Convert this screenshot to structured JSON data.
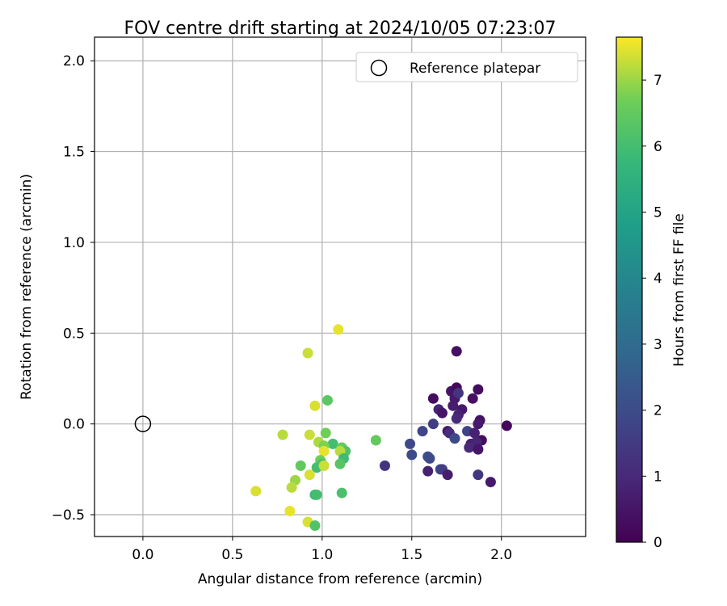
{
  "chart_data": {
    "type": "scatter",
    "title": "FOV centre drift starting at 2024/10/05 07:23:07",
    "xlabel": "Angular distance from reference (arcmin)",
    "ylabel": "Rotation from reference (arcmin)",
    "xlim": [
      -0.27,
      2.47
    ],
    "ylim": [
      -0.62,
      2.13
    ],
    "xticks": [
      0.0,
      0.5,
      1.0,
      1.5,
      2.0
    ],
    "xtick_labels": [
      "0.0",
      "0.5",
      "1.0",
      "1.5",
      "2.0"
    ],
    "yticks": [
      -0.5,
      0.0,
      0.5,
      1.0,
      1.5,
      2.0
    ],
    "ytick_labels": [
      "−0.5",
      "0.0",
      "0.5",
      "1.0",
      "1.5",
      "2.0"
    ],
    "grid": true,
    "legend": {
      "position": "top-right",
      "entries": [
        {
          "label": "Reference platepar",
          "marker": "open-circle",
          "color": "#000000"
        }
      ]
    },
    "reference_point": {
      "x": 0.0,
      "y": 0.0
    },
    "colorbar": {
      "label": "Hours from first FF file",
      "range": [
        0,
        7.65
      ],
      "ticks": [
        0,
        1,
        2,
        3,
        4,
        5,
        6,
        7
      ],
      "tick_labels": [
        "0",
        "1",
        "2",
        "3",
        "4",
        "5",
        "6",
        "7"
      ],
      "colormap": "viridis"
    },
    "points": [
      {
        "x": 1.75,
        "y": 0.4,
        "c": 0.4
      },
      {
        "x": 1.62,
        "y": 0.14,
        "c": 0.3
      },
      {
        "x": 1.72,
        "y": 0.18,
        "c": 0.5
      },
      {
        "x": 1.75,
        "y": 0.2,
        "c": 0.2
      },
      {
        "x": 1.87,
        "y": 0.19,
        "c": 0.3
      },
      {
        "x": 1.74,
        "y": 0.14,
        "c": 0.6
      },
      {
        "x": 1.84,
        "y": 0.14,
        "c": 0.4
      },
      {
        "x": 1.76,
        "y": 0.17,
        "c": 1.3
      },
      {
        "x": 1.65,
        "y": 0.08,
        "c": 0.9
      },
      {
        "x": 1.67,
        "y": 0.06,
        "c": 0.5
      },
      {
        "x": 1.73,
        "y": 0.1,
        "c": 0.7
      },
      {
        "x": 1.78,
        "y": 0.08,
        "c": 0.6
      },
      {
        "x": 1.76,
        "y": 0.05,
        "c": 0.8
      },
      {
        "x": 1.75,
        "y": 0.03,
        "c": 1.0
      },
      {
        "x": 1.62,
        "y": 0.0,
        "c": 1.6
      },
      {
        "x": 1.56,
        "y": -0.04,
        "c": 1.8
      },
      {
        "x": 1.7,
        "y": -0.04,
        "c": 0.5
      },
      {
        "x": 1.71,
        "y": -0.05,
        "c": 1.1
      },
      {
        "x": 1.74,
        "y": -0.08,
        "c": 1.9
      },
      {
        "x": 1.81,
        "y": -0.04,
        "c": 1.7
      },
      {
        "x": 1.88,
        "y": 0.02,
        "c": 0.4
      },
      {
        "x": 1.87,
        "y": 0.0,
        "c": 0.6
      },
      {
        "x": 2.03,
        "y": -0.01,
        "c": 0.2
      },
      {
        "x": 1.85,
        "y": -0.05,
        "c": 0.8
      },
      {
        "x": 1.89,
        "y": -0.09,
        "c": 0.3
      },
      {
        "x": 1.83,
        "y": -0.11,
        "c": 0.7
      },
      {
        "x": 1.86,
        "y": -0.1,
        "c": 0.9
      },
      {
        "x": 1.82,
        "y": -0.13,
        "c": 1.0
      },
      {
        "x": 1.87,
        "y": -0.14,
        "c": 0.5
      },
      {
        "x": 1.49,
        "y": -0.11,
        "c": 1.9
      },
      {
        "x": 1.5,
        "y": -0.17,
        "c": 2.0
      },
      {
        "x": 1.59,
        "y": -0.18,
        "c": 2.1
      },
      {
        "x": 1.6,
        "y": -0.19,
        "c": 2.0
      },
      {
        "x": 1.35,
        "y": -0.23,
        "c": 1.3
      },
      {
        "x": 1.59,
        "y": -0.26,
        "c": 0.8
      },
      {
        "x": 1.66,
        "y": -0.25,
        "c": 1.9
      },
      {
        "x": 1.67,
        "y": -0.25,
        "c": 1.6
      },
      {
        "x": 1.7,
        "y": -0.28,
        "c": 0.7
      },
      {
        "x": 1.87,
        "y": -0.28,
        "c": 1.4
      },
      {
        "x": 1.94,
        "y": -0.32,
        "c": 0.6
      },
      {
        "x": 1.09,
        "y": 0.52,
        "c": 7.5
      },
      {
        "x": 0.92,
        "y": 0.39,
        "c": 7.3
      },
      {
        "x": 1.03,
        "y": 0.13,
        "c": 6.4
      },
      {
        "x": 0.96,
        "y": 0.1,
        "c": 7.4
      },
      {
        "x": 1.02,
        "y": -0.05,
        "c": 6.7
      },
      {
        "x": 0.78,
        "y": -0.06,
        "c": 7.2
      },
      {
        "x": 0.93,
        "y": -0.06,
        "c": 7.3
      },
      {
        "x": 1.3,
        "y": -0.09,
        "c": 6.5
      },
      {
        "x": 0.98,
        "y": -0.1,
        "c": 7.1
      },
      {
        "x": 1.06,
        "y": -0.11,
        "c": 6.0
      },
      {
        "x": 1.01,
        "y": -0.12,
        "c": 6.8
      },
      {
        "x": 1.11,
        "y": -0.13,
        "c": 6.6
      },
      {
        "x": 1.13,
        "y": -0.15,
        "c": 6.2
      },
      {
        "x": 1.1,
        "y": -0.15,
        "c": 7.2
      },
      {
        "x": 1.01,
        "y": -0.15,
        "c": 7.5
      },
      {
        "x": 1.12,
        "y": -0.19,
        "c": 5.9
      },
      {
        "x": 0.99,
        "y": -0.2,
        "c": 6.7
      },
      {
        "x": 1.0,
        "y": -0.22,
        "c": 6.1
      },
      {
        "x": 0.88,
        "y": -0.23,
        "c": 6.5
      },
      {
        "x": 0.97,
        "y": -0.24,
        "c": 6.0
      },
      {
        "x": 1.01,
        "y": -0.23,
        "c": 7.3
      },
      {
        "x": 1.1,
        "y": -0.22,
        "c": 6.3
      },
      {
        "x": 0.93,
        "y": -0.28,
        "c": 7.4
      },
      {
        "x": 0.85,
        "y": -0.31,
        "c": 7.0
      },
      {
        "x": 0.83,
        "y": -0.35,
        "c": 7.2
      },
      {
        "x": 0.63,
        "y": -0.37,
        "c": 7.4
      },
      {
        "x": 0.96,
        "y": -0.39,
        "c": 5.8
      },
      {
        "x": 0.97,
        "y": -0.39,
        "c": 6.0
      },
      {
        "x": 1.11,
        "y": -0.38,
        "c": 6.1
      },
      {
        "x": 0.82,
        "y": -0.48,
        "c": 7.5
      },
      {
        "x": 0.92,
        "y": -0.54,
        "c": 7.4
      },
      {
        "x": 0.96,
        "y": -0.56,
        "c": 6.2
      }
    ]
  }
}
